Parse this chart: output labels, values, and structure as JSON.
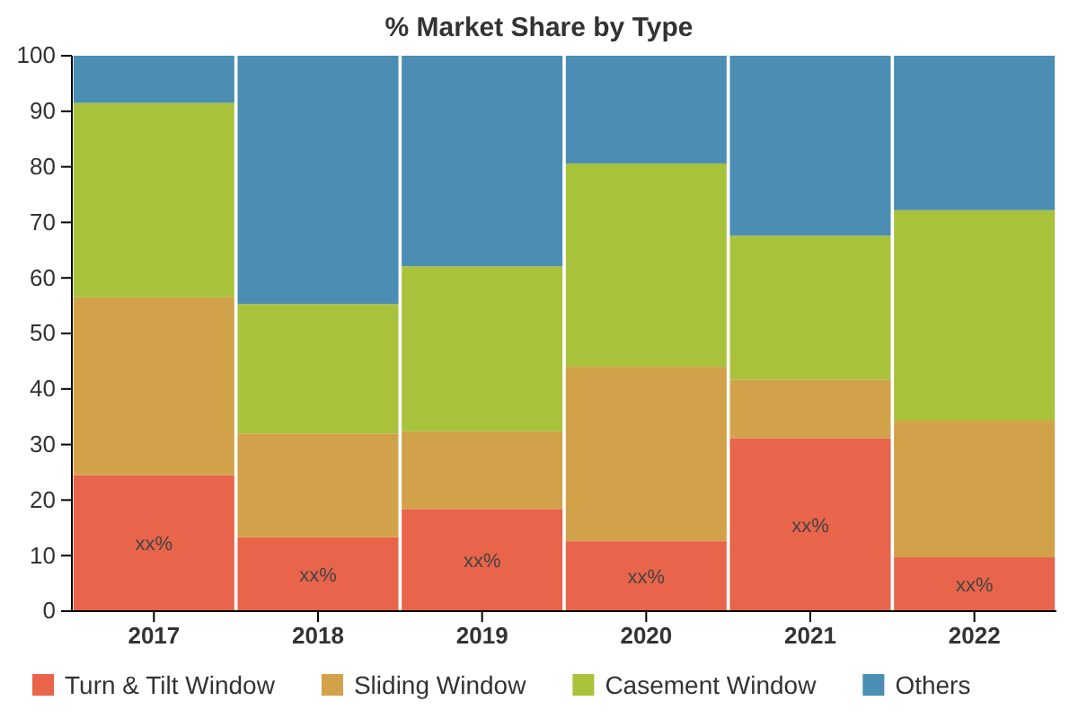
{
  "chart_data": {
    "type": "bar",
    "title": "% Market Share by Type",
    "categories": [
      "2017",
      "2018",
      "2019",
      "2020",
      "2021",
      "2022"
    ],
    "stacked": true,
    "series": [
      {
        "name": "Turn & Tilt Window",
        "color": "#e8644a",
        "values": [
          24.5,
          13.3,
          18.4,
          12.6,
          31.1,
          9.7
        ],
        "value_labels": [
          "xx%",
          "xx%",
          "xx%",
          "xx%",
          "xx%",
          "xx%"
        ]
      },
      {
        "name": "Sliding Window",
        "color": "#d2a24a",
        "values": [
          32,
          18.7,
          14,
          31.4,
          10.6,
          24.6
        ]
      },
      {
        "name": "Casement Window",
        "color": "#a9c23c",
        "values": [
          35,
          23.3,
          29.7,
          36.6,
          25.9,
          37.9
        ]
      },
      {
        "name": "Others",
        "color": "#4b8db3",
        "values": [
          8.5,
          44.7,
          37.9,
          19.4,
          32.4,
          27.8
        ]
      }
    ],
    "ylim": [
      0,
      100
    ],
    "yticks": [
      0,
      10,
      20,
      30,
      40,
      50,
      60,
      70,
      80,
      90,
      100
    ],
    "grid": false,
    "legend": "bottom"
  }
}
